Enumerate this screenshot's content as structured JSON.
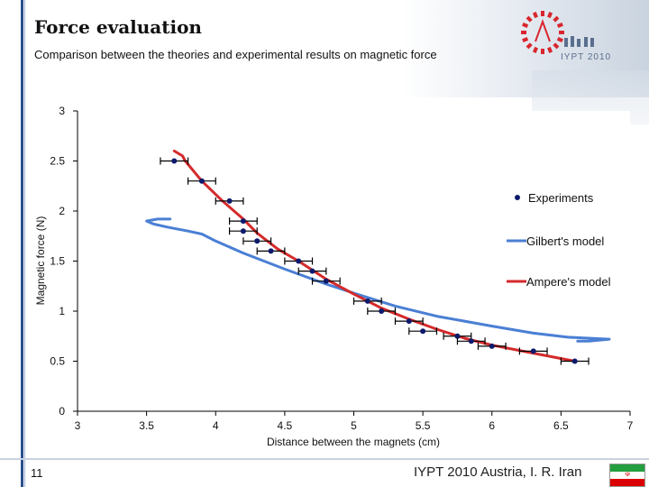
{
  "slide": {
    "title": "Force evaluation",
    "subtitle": "Comparison between the theories and experimental results on magnetic force",
    "page_number": "11",
    "footer": "IYPT 2010 Austria, I. R. Iran",
    "logo_text": "IYPT 2010",
    "colors": {
      "rule": "#2b4f8c",
      "logo": "#d9262e"
    }
  },
  "chart_data": {
    "type": "scatter",
    "xlabel": "Distance between the magnets (cm)",
    "ylabel": "Magnetic force (N)",
    "xlim": [
      3,
      7
    ],
    "ylim": [
      0,
      3
    ],
    "x_ticks": [
      "3",
      "3.5",
      "4",
      "4.5",
      "5",
      "5.5",
      "6",
      "6.5",
      "7"
    ],
    "y_ticks": [
      "0",
      "0.5",
      "1",
      "1.5",
      "2",
      "2.5",
      "3"
    ],
    "grid": false,
    "legend_position": "right",
    "series": [
      {
        "name": "Experiments",
        "kind": "points_with_xerror",
        "color": "#0d1a6b",
        "x_error": 0.1,
        "points": [
          {
            "x": 3.7,
            "y": 2.5
          },
          {
            "x": 3.9,
            "y": 2.3
          },
          {
            "x": 4.1,
            "y": 2.1
          },
          {
            "x": 4.2,
            "y": 1.9
          },
          {
            "x": 4.2,
            "y": 1.8
          },
          {
            "x": 4.3,
            "y": 1.7
          },
          {
            "x": 4.4,
            "y": 1.6
          },
          {
            "x": 4.6,
            "y": 1.5
          },
          {
            "x": 4.7,
            "y": 1.4
          },
          {
            "x": 4.8,
            "y": 1.3
          },
          {
            "x": 5.1,
            "y": 1.1
          },
          {
            "x": 5.2,
            "y": 1.0
          },
          {
            "x": 5.4,
            "y": 0.9
          },
          {
            "x": 5.5,
            "y": 0.8
          },
          {
            "x": 5.75,
            "y": 0.75
          },
          {
            "x": 5.85,
            "y": 0.7
          },
          {
            "x": 6.0,
            "y": 0.65
          },
          {
            "x": 6.3,
            "y": 0.6
          },
          {
            "x": 6.6,
            "y": 0.5
          }
        ]
      },
      {
        "name": "Gilbert's model",
        "kind": "line",
        "color": "#4a7fd4",
        "points": [
          {
            "x": 3.67,
            "y": 1.92
          },
          {
            "x": 3.58,
            "y": 1.92
          },
          {
            "x": 3.5,
            "y": 1.9
          },
          {
            "x": 3.55,
            "y": 1.87
          },
          {
            "x": 3.65,
            "y": 1.84
          },
          {
            "x": 3.8,
            "y": 1.8
          },
          {
            "x": 3.9,
            "y": 1.77
          },
          {
            "x": 4.0,
            "y": 1.7
          },
          {
            "x": 4.2,
            "y": 1.58
          },
          {
            "x": 4.5,
            "y": 1.42
          },
          {
            "x": 4.8,
            "y": 1.27
          },
          {
            "x": 5.0,
            "y": 1.18
          },
          {
            "x": 5.3,
            "y": 1.05
          },
          {
            "x": 5.6,
            "y": 0.95
          },
          {
            "x": 6.0,
            "y": 0.85
          },
          {
            "x": 6.3,
            "y": 0.78
          },
          {
            "x": 6.55,
            "y": 0.74
          },
          {
            "x": 6.7,
            "y": 0.73
          },
          {
            "x": 6.85,
            "y": 0.72
          },
          {
            "x": 6.7,
            "y": 0.7
          },
          {
            "x": 6.62,
            "y": 0.7
          }
        ]
      },
      {
        "name": "Ampere's model",
        "kind": "line",
        "color": "#d42a2a",
        "points": [
          {
            "x": 3.7,
            "y": 2.6
          },
          {
            "x": 3.76,
            "y": 2.55
          },
          {
            "x": 3.78,
            "y": 2.5
          },
          {
            "x": 3.9,
            "y": 2.3
          },
          {
            "x": 4.05,
            "y": 2.1
          },
          {
            "x": 4.2,
            "y": 1.92
          },
          {
            "x": 4.3,
            "y": 1.78
          },
          {
            "x": 4.45,
            "y": 1.62
          },
          {
            "x": 4.6,
            "y": 1.5
          },
          {
            "x": 4.8,
            "y": 1.32
          },
          {
            "x": 5.0,
            "y": 1.17
          },
          {
            "x": 5.2,
            "y": 1.03
          },
          {
            "x": 5.4,
            "y": 0.92
          },
          {
            "x": 5.6,
            "y": 0.82
          },
          {
            "x": 5.8,
            "y": 0.73
          },
          {
            "x": 6.0,
            "y": 0.66
          },
          {
            "x": 6.3,
            "y": 0.58
          },
          {
            "x": 6.6,
            "y": 0.5
          }
        ]
      }
    ]
  }
}
